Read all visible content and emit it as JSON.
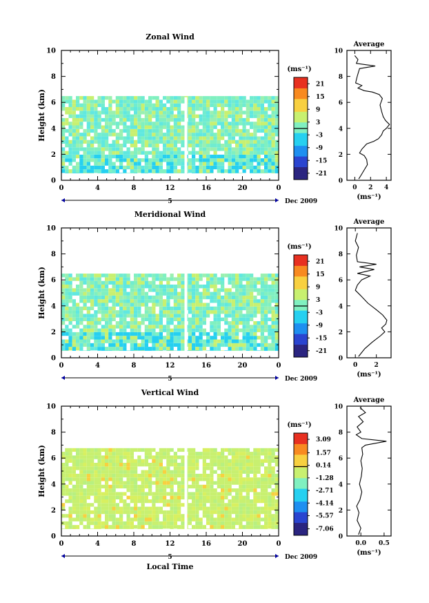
{
  "chart_data": [
    {
      "type": "heatmap",
      "title": "Zonal Wind",
      "ylabel": "Height (km)",
      "unit_label": "(ms⁻¹)",
      "date_label": "Dec 2009",
      "day_label": "5",
      "x_ticks": [
        "0",
        "4",
        "8",
        "12",
        "16",
        "20",
        "0"
      ],
      "y_ticks": [
        "0",
        "2",
        "4",
        "6",
        "8",
        "10"
      ],
      "xlim": [
        0,
        24
      ],
      "ylim": [
        0,
        10
      ],
      "colorbar_ticks": [
        "21",
        "15",
        "9",
        "3",
        "-3",
        "-9",
        "-15",
        "-21"
      ],
      "colorbar_range": [
        -24,
        24
      ],
      "data_top_km": 6.4,
      "average": {
        "title": "Average",
        "xlabel": "(ms⁻¹)",
        "x_ticks": [
          "0",
          "2",
          "4"
        ],
        "xlim": [
          -1,
          4.6
        ],
        "ylim": [
          0,
          10
        ],
        "y_ticks": [
          "0",
          "2",
          "4",
          "6",
          "8",
          "10"
        ],
        "profile": [
          [
            0.5,
            0.1
          ],
          [
            0.8,
            0.4
          ],
          [
            1.2,
            0.8
          ],
          [
            1.6,
            1.2
          ],
          [
            1.5,
            1.6
          ],
          [
            1.2,
            1.9
          ],
          [
            0.6,
            2.1
          ],
          [
            0.9,
            2.4
          ],
          [
            1.5,
            2.8
          ],
          [
            2.4,
            3.0
          ],
          [
            3.0,
            3.2
          ],
          [
            3.4,
            3.5
          ],
          [
            3.6,
            3.8
          ],
          [
            4.0,
            4.0
          ],
          [
            4.4,
            4.3
          ],
          [
            3.9,
            4.6
          ],
          [
            3.6,
            4.9
          ],
          [
            3.4,
            5.3
          ],
          [
            3.2,
            5.8
          ],
          [
            3.5,
            6.3
          ],
          [
            3.1,
            6.6
          ],
          [
            2.2,
            6.8
          ],
          [
            1.2,
            6.9
          ],
          [
            0.4,
            7.1
          ],
          [
            0.9,
            7.3
          ],
          [
            0.1,
            7.5
          ],
          [
            0.3,
            8.0
          ],
          [
            0.6,
            8.6
          ],
          [
            2.6,
            8.8
          ],
          [
            0.2,
            9.0
          ],
          [
            0.4,
            9.3
          ],
          [
            0.0,
            9.6
          ]
        ]
      }
    },
    {
      "type": "heatmap",
      "title": "Meridional Wind",
      "ylabel": "Height (km)",
      "unit_label": "(ms⁻¹)",
      "date_label": "Dec 2009",
      "day_label": "5",
      "x_ticks": [
        "0",
        "4",
        "8",
        "12",
        "16",
        "20",
        "0"
      ],
      "y_ticks": [
        "0",
        "2",
        "4",
        "6",
        "8",
        "10"
      ],
      "xlim": [
        0,
        24
      ],
      "ylim": [
        0,
        10
      ],
      "colorbar_ticks": [
        "21",
        "15",
        "9",
        "3",
        "-3",
        "-9",
        "-15",
        "-21"
      ],
      "colorbar_range": [
        -24,
        24
      ],
      "data_top_km": 6.6,
      "average": {
        "title": "Average",
        "xlabel": "(ms⁻¹)",
        "x_ticks": [
          "0",
          "2"
        ],
        "xlim": [
          -0.8,
          3.4
        ],
        "ylim": [
          0,
          10
        ],
        "y_ticks": [
          "0",
          "2",
          "4",
          "6",
          "8",
          "10"
        ],
        "profile": [
          [
            0.3,
            0.1
          ],
          [
            0.6,
            0.4
          ],
          [
            0.9,
            0.7
          ],
          [
            1.6,
            1.2
          ],
          [
            2.4,
            1.7
          ],
          [
            2.8,
            2.0
          ],
          [
            2.5,
            2.3
          ],
          [
            2.9,
            2.6
          ],
          [
            3.0,
            2.9
          ],
          [
            2.6,
            3.3
          ],
          [
            2.0,
            3.7
          ],
          [
            1.2,
            4.2
          ],
          [
            0.5,
            4.8
          ],
          [
            0.0,
            5.2
          ],
          [
            0.2,
            5.6
          ],
          [
            0.6,
            6.0
          ],
          [
            1.4,
            6.3
          ],
          [
            0.2,
            6.5
          ],
          [
            1.8,
            6.8
          ],
          [
            0.4,
            7.0
          ],
          [
            2.0,
            7.2
          ],
          [
            0.2,
            7.4
          ],
          [
            0.1,
            7.9
          ],
          [
            0.3,
            8.5
          ],
          [
            0.0,
            9.0
          ],
          [
            0.2,
            9.6
          ]
        ]
      }
    },
    {
      "type": "heatmap",
      "title": "Vertical Wind",
      "ylabel": "Height (km)",
      "xlabel": "Local Time",
      "unit_label": "(ms⁻¹)",
      "date_label": "Dec 2009",
      "day_label": "5",
      "x_ticks": [
        "0",
        "4",
        "8",
        "12",
        "16",
        "20",
        "0"
      ],
      "y_ticks": [
        "0",
        "2",
        "4",
        "6",
        "8",
        "10"
      ],
      "xlim": [
        0,
        24
      ],
      "ylim": [
        0,
        10
      ],
      "colorbar_ticks": [
        "3.09",
        "1.57",
        "0.14",
        "-1.28",
        "-2.71",
        "-4.14",
        "-5.57",
        "-7.06"
      ],
      "colorbar_range": [
        -7.8,
        3.8
      ],
      "data_top_km": 6.8,
      "average": {
        "title": "Average",
        "xlabel": "(ms⁻¹)",
        "x_ticks": [
          "0.0",
          "0.5"
        ],
        "xlim": [
          -0.3,
          0.65
        ],
        "ylim": [
          0,
          10
        ],
        "y_ticks": [
          "0",
          "2",
          "4",
          "6",
          "8",
          "10"
        ],
        "profile": [
          [
            -0.05,
            0.1
          ],
          [
            0.0,
            0.6
          ],
          [
            -0.08,
            1.2
          ],
          [
            -0.04,
            1.8
          ],
          [
            -0.09,
            2.3
          ],
          [
            -0.02,
            2.8
          ],
          [
            0.02,
            3.4
          ],
          [
            -0.03,
            4.0
          ],
          [
            0.01,
            4.6
          ],
          [
            0.03,
            5.2
          ],
          [
            0.0,
            5.8
          ],
          [
            0.04,
            6.3
          ],
          [
            0.02,
            6.8
          ],
          [
            0.1,
            7.0
          ],
          [
            0.55,
            7.3
          ],
          [
            0.02,
            7.5
          ],
          [
            -0.1,
            7.8
          ],
          [
            0.0,
            8.0
          ],
          [
            -0.08,
            8.4
          ],
          [
            0.05,
            8.8
          ],
          [
            -0.05,
            9.2
          ],
          [
            0.1,
            9.5
          ],
          [
            -0.02,
            9.9
          ]
        ]
      }
    }
  ]
}
